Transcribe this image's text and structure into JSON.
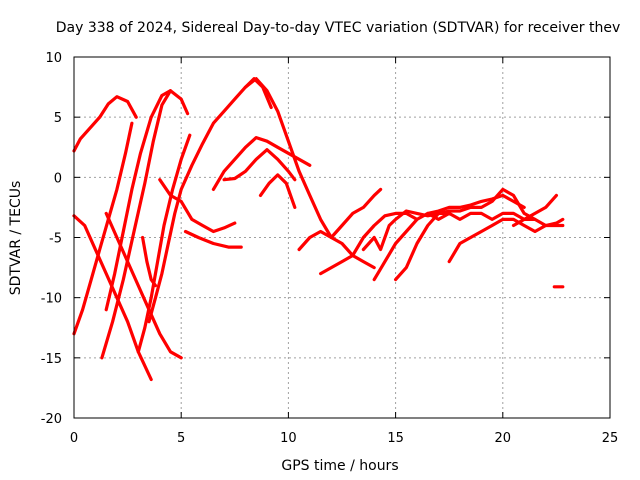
{
  "chart_data": {
    "type": "scatter",
    "title": "Day 338 of 2024, Sidereal Day-to-day VTEC variation (SDTVAR) for receiver thev",
    "xlabel": "GPS time / hours",
    "ylabel": "SDTVAR / TECUs",
    "xlim": [
      0,
      25
    ],
    "ylim": [
      -20,
      10
    ],
    "xticks": [
      0,
      5,
      10,
      15,
      20,
      25
    ],
    "yticks": [
      -20,
      -15,
      -10,
      -5,
      0,
      5,
      10
    ],
    "grid": true,
    "marker": "+",
    "color": "#ff0000",
    "series": [
      {
        "name": "s1",
        "x": [
          0.0,
          0.3,
          0.7,
          1.2,
          1.6,
          2.0,
          2.5,
          2.9
        ],
        "y": [
          2.2,
          3.2,
          4.0,
          5.0,
          6.1,
          6.7,
          6.3,
          5.0
        ]
      },
      {
        "name": "s2",
        "x": [
          0.0,
          0.4,
          0.8,
          1.2,
          1.6,
          2.0,
          2.4,
          2.7
        ],
        "y": [
          -13.0,
          -11.0,
          -8.5,
          -6.0,
          -3.5,
          -1.0,
          2.0,
          4.5
        ]
      },
      {
        "name": "s3",
        "x": [
          0.0,
          0.5,
          1.0,
          1.5,
          2.0,
          2.5,
          3.0,
          3.6
        ],
        "y": [
          -3.2,
          -4.0,
          -6.0,
          -8.0,
          -10.0,
          -12.0,
          -14.5,
          -16.8
        ]
      },
      {
        "name": "s4",
        "x": [
          1.5,
          2.0,
          2.5,
          3.0,
          3.5,
          4.0,
          4.5,
          5.0
        ],
        "y": [
          -3.0,
          -5.0,
          -7.0,
          -9.0,
          -11.0,
          -13.0,
          -14.5,
          -15.0
        ]
      },
      {
        "name": "s5",
        "x": [
          1.5,
          1.9,
          2.3,
          2.7,
          3.1,
          3.6,
          4.1,
          4.5,
          5.0,
          5.3
        ],
        "y": [
          -11.0,
          -8.0,
          -4.5,
          -1.0,
          2.0,
          5.0,
          6.8,
          7.2,
          6.5,
          5.3
        ]
      },
      {
        "name": "s6",
        "x": [
          1.3,
          1.8,
          2.3,
          2.8,
          3.3,
          3.7,
          4.1,
          4.5
        ],
        "y": [
          -15.0,
          -12.0,
          -8.5,
          -4.5,
          -0.5,
          3.0,
          6.0,
          7.2
        ]
      },
      {
        "name": "s7",
        "x": [
          3.0,
          3.3,
          3.6,
          3.9,
          4.2,
          4.6,
          5.0,
          5.4
        ],
        "y": [
          -14.5,
          -12.5,
          -10.0,
          -7.0,
          -4.0,
          -1.0,
          1.5,
          3.5
        ]
      },
      {
        "name": "s8",
        "x": [
          3.2,
          3.4,
          3.6,
          3.8
        ],
        "y": [
          -5.0,
          -7.0,
          -8.5,
          -9.0
        ]
      },
      {
        "name": "s9",
        "x": [
          3.5,
          3.8,
          4.1,
          4.4,
          4.7,
          5.0,
          5.5,
          6.0,
          6.5,
          7.0,
          7.5,
          8.0,
          8.4,
          8.8,
          9.2
        ],
        "y": [
          -12.0,
          -10.0,
          -8.0,
          -5.5,
          -3.0,
          -1.0,
          1.0,
          2.8,
          4.5,
          5.5,
          6.5,
          7.5,
          8.2,
          7.5,
          5.8
        ]
      },
      {
        "name": "s10",
        "x": [
          4.0,
          4.5,
          5.0,
          5.5,
          6.0,
          6.5,
          7.0,
          7.5
        ],
        "y": [
          -0.2,
          -1.5,
          -2.0,
          -3.5,
          -4.0,
          -4.5,
          -4.2,
          -3.8
        ]
      },
      {
        "name": "s11",
        "x": [
          5.2,
          5.8,
          6.5,
          7.2,
          7.8
        ],
        "y": [
          -4.5,
          -5.0,
          -5.5,
          -5.8,
          -5.8
        ]
      },
      {
        "name": "s12",
        "x": [
          6.5,
          7.0,
          7.5,
          8.0,
          8.5,
          9.0,
          9.5,
          10.0,
          10.5,
          11.0
        ],
        "y": [
          -1.0,
          0.5,
          1.5,
          2.5,
          3.3,
          3.0,
          2.5,
          2.0,
          1.5,
          1.0
        ]
      },
      {
        "name": "s13",
        "x": [
          7.0,
          7.5,
          8.0,
          8.5,
          9.0,
          9.5,
          10.0,
          10.3
        ],
        "y": [
          -0.2,
          -0.1,
          0.5,
          1.5,
          2.3,
          1.5,
          0.5,
          -0.2
        ]
      },
      {
        "name": "s14",
        "x": [
          8.0,
          8.5,
          9.0,
          9.5,
          10.0,
          10.5,
          11.0,
          11.5,
          12.0,
          12.5,
          13.0,
          13.5,
          14.0
        ],
        "y": [
          7.5,
          8.2,
          7.2,
          5.5,
          3.0,
          0.5,
          -1.5,
          -3.5,
          -5.0,
          -5.5,
          -6.5,
          -7.0,
          -7.5
        ]
      },
      {
        "name": "s15",
        "x": [
          8.7,
          9.1,
          9.5,
          9.9,
          10.3
        ],
        "y": [
          -1.5,
          -0.5,
          0.2,
          -0.5,
          -2.5
        ]
      },
      {
        "name": "s16",
        "x": [
          10.5,
          11.0,
          11.5,
          12.0,
          12.5,
          13.0,
          13.5,
          14.0,
          14.3
        ],
        "y": [
          -6.0,
          -5.0,
          -4.5,
          -5.0,
          -4.0,
          -3.0,
          -2.5,
          -1.5,
          -1.0
        ]
      },
      {
        "name": "s17",
        "x": [
          11.5,
          12.0,
          12.5,
          13.0,
          13.5,
          14.0,
          14.5,
          15.0,
          15.5,
          16.0
        ],
        "y": [
          -8.0,
          -7.5,
          -7.0,
          -6.5,
          -5.0,
          -4.0,
          -3.2,
          -3.0,
          -3.0,
          -3.5
        ]
      },
      {
        "name": "s18",
        "x": [
          13.5,
          14.0,
          14.3,
          14.7,
          15.0,
          15.5,
          16.0,
          16.5,
          17.0,
          17.5
        ],
        "y": [
          -6.0,
          -5.0,
          -6.0,
          -4.0,
          -3.5,
          -2.8,
          -3.0,
          -3.2,
          -3.0,
          -3.0
        ]
      },
      {
        "name": "s19",
        "x": [
          14.0,
          14.5,
          15.0,
          15.5,
          16.0,
          16.5,
          17.0,
          17.5,
          18.0,
          18.5,
          19.0,
          19.5,
          20.0,
          20.5,
          21.0
        ],
        "y": [
          -8.5,
          -7.0,
          -5.5,
          -4.5,
          -3.5,
          -3.0,
          -2.8,
          -2.5,
          -2.5,
          -2.3,
          -2.0,
          -1.8,
          -1.5,
          -2.0,
          -2.5
        ]
      },
      {
        "name": "s20",
        "x": [
          15.0,
          15.5,
          16.0,
          16.5,
          17.0,
          17.5,
          18.0,
          18.5,
          19.0,
          19.5,
          20.0,
          20.5,
          21.0,
          21.5
        ],
        "y": [
          -8.5,
          -7.5,
          -5.5,
          -4.0,
          -3.0,
          -2.8,
          -2.8,
          -2.5,
          -2.5,
          -2.0,
          -1.0,
          -1.5,
          -3.0,
          -3.5
        ]
      },
      {
        "name": "s21",
        "x": [
          17.5,
          18.0,
          18.5,
          19.0,
          19.5,
          20.0,
          20.5,
          21.0,
          21.5,
          22.0,
          22.5,
          22.8
        ],
        "y": [
          -7.0,
          -5.5,
          -5.0,
          -4.5,
          -4.0,
          -3.5,
          -3.5,
          -4.0,
          -4.5,
          -4.0,
          -3.8,
          -3.5
        ]
      },
      {
        "name": "s22",
        "x": [
          16.5,
          17.0,
          17.5,
          18.0,
          18.5,
          19.0,
          19.5,
          20.0,
          20.5,
          21.0,
          21.5,
          22.0,
          22.5,
          22.8
        ],
        "y": [
          -3.0,
          -3.5,
          -3.0,
          -3.5,
          -3.0,
          -3.0,
          -3.5,
          -3.0,
          -3.0,
          -3.5,
          -3.5,
          -4.0,
          -4.0,
          -4.0
        ]
      },
      {
        "name": "s23",
        "x": [
          20.5,
          21.0,
          21.5,
          22.0,
          22.5
        ],
        "y": [
          -4.0,
          -3.5,
          -3.0,
          -2.5,
          -1.5
        ]
      },
      {
        "name": "s24",
        "x": [
          22.4,
          22.6,
          22.8
        ],
        "y": [
          -9.1,
          -9.1,
          -9.1
        ]
      }
    ]
  }
}
